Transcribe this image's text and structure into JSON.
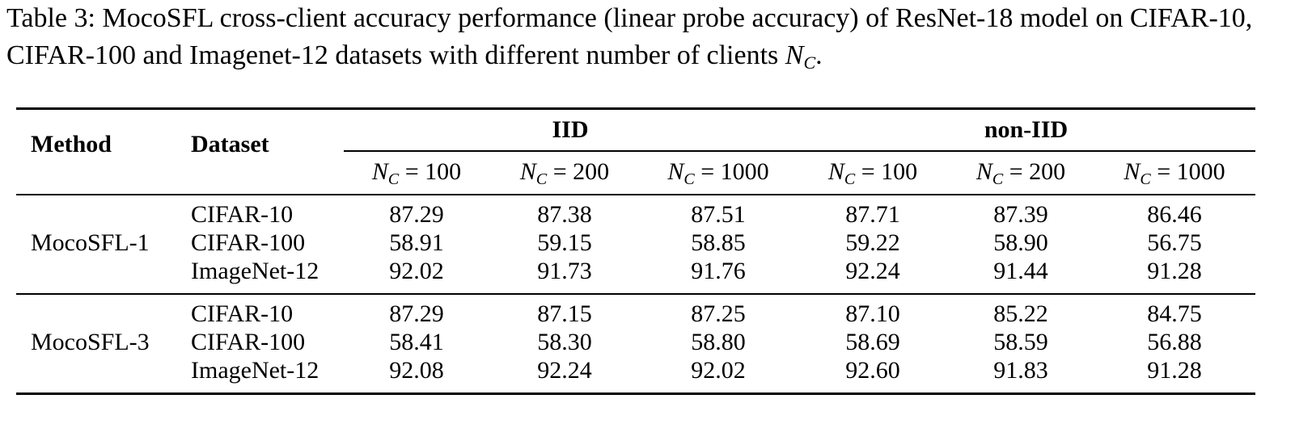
{
  "caption": {
    "prefix": "Table 3: MocoSFL cross-client accuracy performance (linear probe accuracy) of ResNet-18 model on CIFAR-10, CIFAR-100 and Imagenet-12 datasets with different number of clients ",
    "var": "N",
    "sub": "C",
    "suffix": "."
  },
  "table": {
    "col_method": "Method",
    "col_dataset": "Dataset",
    "group_iid": "IID",
    "group_noniid": "non-IID",
    "nc_var": "N",
    "nc_sub": "C",
    "nc_values": [
      "100",
      "200",
      "1000",
      "100",
      "200",
      "1000"
    ],
    "groups": [
      {
        "method": "MocoSFL-1",
        "rows": [
          {
            "dataset": "CIFAR-10",
            "values": [
              "87.29",
              "87.38",
              "87.51",
              "87.71",
              "87.39",
              "86.46"
            ]
          },
          {
            "dataset": "CIFAR-100",
            "values": [
              "58.91",
              "59.15",
              "58.85",
              "59.22",
              "58.90",
              "56.75"
            ]
          },
          {
            "dataset": "ImageNet-12",
            "values": [
              "92.02",
              "91.73",
              "91.76",
              "92.24",
              "91.44",
              "91.28"
            ]
          }
        ]
      },
      {
        "method": "MocoSFL-3",
        "rows": [
          {
            "dataset": "CIFAR-10",
            "values": [
              "87.29",
              "87.15",
              "87.25",
              "87.10",
              "85.22",
              "84.75"
            ]
          },
          {
            "dataset": "CIFAR-100",
            "values": [
              "58.41",
              "58.30",
              "58.80",
              "58.69",
              "58.59",
              "56.88"
            ]
          },
          {
            "dataset": "ImageNet-12",
            "values": [
              "92.08",
              "92.24",
              "92.02",
              "92.60",
              "91.83",
              "91.28"
            ]
          }
        ]
      }
    ]
  }
}
